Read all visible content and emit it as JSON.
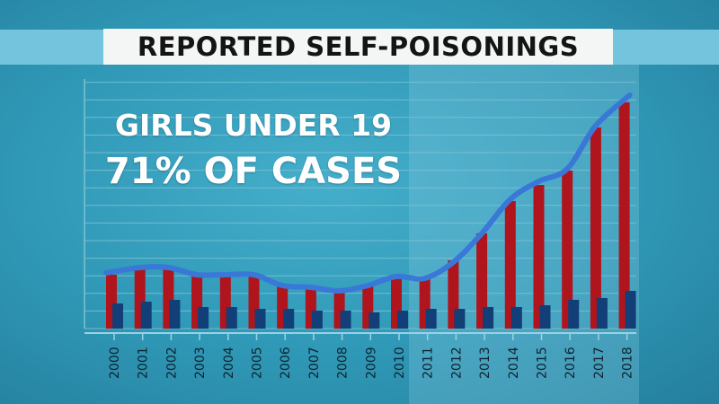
{
  "title": "REPORTED SELF-POISONINGS",
  "headline": {
    "line1": "GIRLS UNDER 19",
    "line2": "71% OF CASES"
  },
  "colors": {
    "background": "#2f93b0",
    "red_bar": "#b0141c",
    "blue_bar": "#123f78",
    "trend_line": "#3a78d8",
    "grid": "#7fc1d4"
  },
  "chart_data": {
    "type": "bar",
    "categories": [
      "2000",
      "2001",
      "2002",
      "2003",
      "2004",
      "2005",
      "2006",
      "2007",
      "2008",
      "2009",
      "2010",
      "2011",
      "2012",
      "2013",
      "2014",
      "2015",
      "2016",
      "2017",
      "2018"
    ],
    "series": [
      {
        "values": [
          30,
          33,
          33,
          29,
          29,
          29,
          24,
          23,
          21,
          24,
          29,
          28,
          38,
          53,
          71,
          80,
          88,
          112,
          126
        ]
      },
      {
        "values": [
          14,
          15,
          16,
          12,
          12,
          11,
          11,
          10,
          10,
          9,
          10,
          11,
          11,
          12,
          12,
          13,
          16,
          17,
          21
        ]
      }
    ],
    "trend_line": [
      31,
      34,
      34,
      30,
      30,
      30,
      24,
      23,
      21,
      24,
      29,
      28,
      37,
      53,
      72,
      82,
      89,
      113,
      130
    ],
    "ylim": [
      0,
      140
    ],
    "grid": true,
    "highlighted_range": [
      "2011",
      "2018"
    ]
  }
}
